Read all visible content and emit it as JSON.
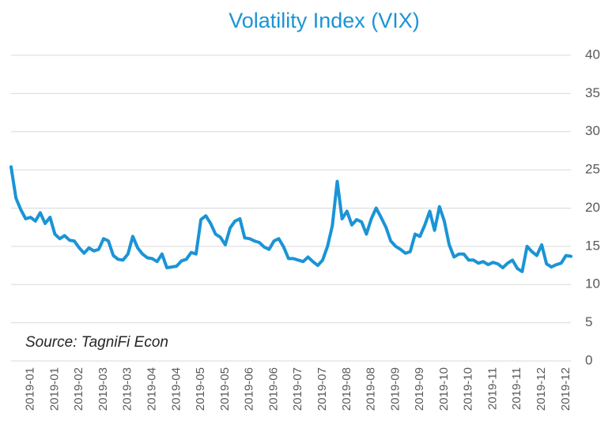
{
  "chart_data": {
    "type": "line",
    "title": "Volatility Index (VIX)",
    "annotation": "Source: TagniFi Econ",
    "categories": [
      null,
      null,
      null,
      null,
      "2019-01",
      null,
      null,
      null,
      null,
      "2019-01",
      null,
      null,
      null,
      null,
      "2019-02",
      null,
      null,
      null,
      null,
      "2019-03",
      null,
      null,
      null,
      null,
      "2019-03",
      null,
      null,
      null,
      null,
      "2019-04",
      null,
      null,
      null,
      null,
      "2019-04",
      null,
      null,
      null,
      null,
      "2019-05",
      null,
      null,
      null,
      null,
      "2019-05",
      null,
      null,
      null,
      null,
      "2019-06",
      null,
      null,
      null,
      null,
      "2019-06",
      null,
      null,
      null,
      null,
      "2019-07",
      null,
      null,
      null,
      null,
      "2019-07",
      null,
      null,
      null,
      null,
      "2019-08",
      null,
      null,
      null,
      null,
      "2019-08",
      null,
      null,
      null,
      null,
      "2019-09",
      null,
      null,
      null,
      null,
      "2019-09",
      null,
      null,
      null,
      null,
      "2019-10",
      null,
      null,
      null,
      null,
      "2019-10",
      null,
      null,
      null,
      null,
      "2019-11",
      null,
      null,
      null,
      null,
      "2019-11",
      null,
      null,
      null,
      null,
      "2019-12",
      null,
      null,
      null,
      null,
      "2019-12",
      null
    ],
    "series": [
      {
        "name": "VIX",
        "color": "#1a94d6",
        "values": [
          25.4,
          21.3,
          19.8,
          18.6,
          18.8,
          18.3,
          19.4,
          18,
          18.8,
          16.6,
          16,
          16.4,
          15.8,
          15.7,
          14.8,
          14.1,
          14.8,
          14.4,
          14.6,
          16,
          15.7,
          13.8,
          13.3,
          13.2,
          14,
          16.3,
          14.8,
          14,
          13.5,
          13.4,
          13,
          14,
          12.2,
          12.3,
          12.4,
          13.1,
          13.3,
          14.2,
          14,
          18.5,
          19,
          18,
          16.6,
          16.2,
          15.2,
          17.4,
          18.3,
          18.6,
          16.1,
          16,
          15.7,
          15.5,
          14.9,
          14.6,
          15.7,
          16,
          14.9,
          13.4,
          13.4,
          13.2,
          13,
          13.6,
          13,
          12.5,
          13.2,
          15,
          17.7,
          23.5,
          18.6,
          19.6,
          17.8,
          18.5,
          18.2,
          16.6,
          18.6,
          20,
          18.8,
          17.5,
          15.7,
          15,
          14.6,
          14.1,
          14.3,
          16.6,
          16.3,
          17.8,
          19.6,
          17.1,
          20.2,
          18.3,
          15.2,
          13.6,
          14,
          14,
          13.2,
          13.2,
          12.8,
          13,
          12.6,
          12.9,
          12.7,
          12.2,
          12.8,
          13.2,
          12.1,
          11.7,
          15,
          14.3,
          13.8,
          15.2,
          12.7,
          12.3,
          12.6,
          12.8,
          13.8,
          13.7
        ]
      }
    ],
    "ylim": [
      0,
      40
    ],
    "yticks": [
      0,
      5,
      10,
      15,
      20,
      25,
      30,
      35,
      40
    ],
    "grid": true,
    "title_color": "#1a94d6"
  }
}
